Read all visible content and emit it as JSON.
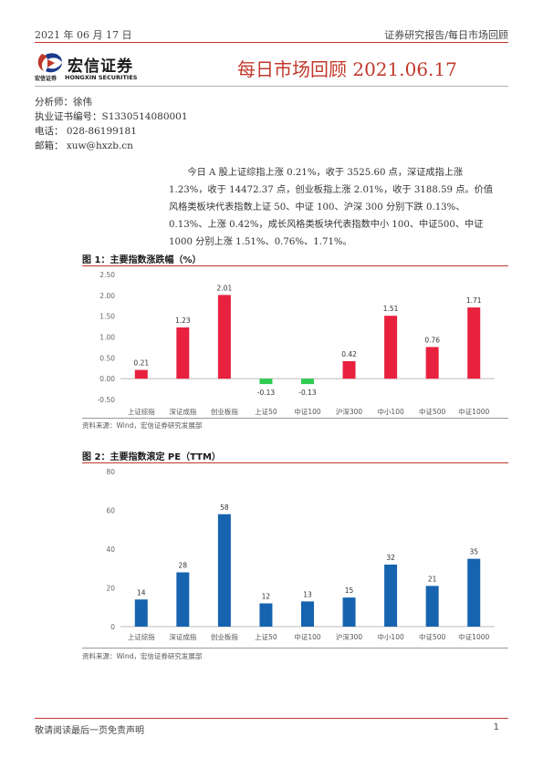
{
  "header": {
    "date": "2021 年 06 月 17 日",
    "series": "证券研究报告/每日市场回顾"
  },
  "logo": {
    "cn": "宏信证券",
    "small": "宏信证券",
    "en": "HONGXIN SECURITIES"
  },
  "title": "每日市场回顾 2021.06.17",
  "analyst": {
    "name": "分析师：徐伟",
    "license": "执业证书编号：S1330514080001",
    "phone": "电话：  028-86199181",
    "email": "邮箱：  xuw@hxzb.cn"
  },
  "summary": "今日 A 股上证综指上涨 0.21%，收于 3525.60 点，深证成指上涨 1.23%，收于 14472.37 点，创业板指上涨 2.01%，收于 3188.59 点。价值风格类板块代表指数上证 50、中证 100、沪深 300 分别下跌 0.13%、0.13%、上涨 0.42%，成长风格类板块代表指数中小 100、中证500、中证 1000 分别上涨 1.51%、0.76%、1.71%。",
  "figures": [
    {
      "title": "图 1：主要指数涨跌幅（%）",
      "source": "资料来源：Wind，宏信证券研究发展部"
    },
    {
      "title": "图 2：主要指数滚定 PE（TTM）",
      "source": "资料来源：Wind，宏信证券研究发展部"
    }
  ],
  "chart_data": [
    {
      "type": "bar",
      "title": "图 1：主要指数涨跌幅（%）",
      "categories": [
        "上证综指",
        "深证成指",
        "创业板指",
        "上证50",
        "中证100",
        "沪深300",
        "中小100",
        "中证500",
        "中证1000"
      ],
      "values": [
        0.21,
        1.23,
        2.01,
        -0.13,
        -0.13,
        0.42,
        1.51,
        0.76,
        1.71
      ],
      "data_labels": [
        "0.21",
        "1.23",
        "2.01",
        "-0.13",
        "-0.13",
        "0.42",
        "1.51",
        "0.76",
        "1.71"
      ],
      "yticks": [
        "2.50",
        "2.00",
        "1.50",
        "1.00",
        "0.50",
        "0.00",
        "-0.50"
      ],
      "ylim": [
        -0.5,
        2.5
      ],
      "positive_color": "#e8213f",
      "negative_color": "#2ecc52",
      "grid": false
    },
    {
      "type": "bar",
      "title": "图 2：主要指数滚定 PE（TTM）",
      "categories": [
        "上证综指",
        "深证成指",
        "创业板指",
        "上证50",
        "中证100",
        "沪深300",
        "中小100",
        "中证500",
        "中证1000"
      ],
      "values": [
        14,
        28,
        58,
        12,
        13,
        15,
        32,
        21,
        35
      ],
      "data_labels": [
        "14",
        "28",
        "58",
        "12",
        "13",
        "15",
        "32",
        "21",
        "35"
      ],
      "yticks": [
        "80",
        "60",
        "40",
        "20",
        "0"
      ],
      "ylim": [
        0,
        80
      ],
      "bar_color": "#1664b0",
      "grid": false
    }
  ],
  "footer": {
    "disclaimer": "敬请阅读最后一页免责声明",
    "page": "1"
  },
  "colors": {
    "accent_red": "#c0392b",
    "title_red": "#c0392b"
  }
}
